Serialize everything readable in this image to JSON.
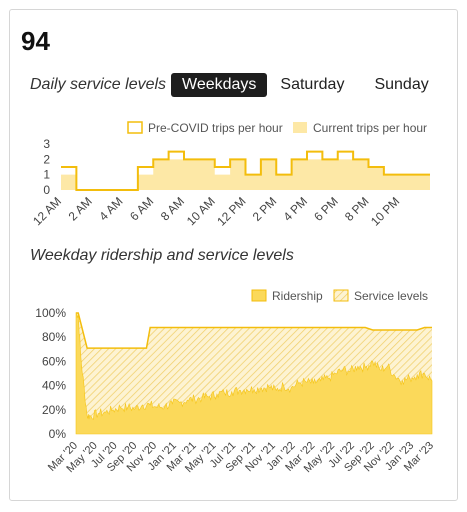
{
  "route": {
    "name": "94"
  },
  "service": {
    "title": "Daily service levels",
    "tabs": [
      {
        "label": "Weekdays",
        "active": true
      },
      {
        "label": "Saturday",
        "active": false
      },
      {
        "label": "Sunday",
        "active": false
      }
    ]
  },
  "ridership": {
    "title": "Weekday ridership and service levels"
  },
  "colors": {
    "fill": "#fbd95a",
    "fill_light": "#fde8a6",
    "line": "#f3bd0c",
    "hatch": "#f3d77a",
    "text": "#555555"
  },
  "chart_data": [
    {
      "type": "area",
      "title": "",
      "legend": [
        "Pre-COVID trips per hour",
        "Current trips per hour"
      ],
      "legend_position": "top-right",
      "x": [
        "12 AM",
        "1 AM",
        "2 AM",
        "3 AM",
        "4 AM",
        "5 AM",
        "6 AM",
        "7 AM",
        "8 AM",
        "9 AM",
        "10 AM",
        "11 AM",
        "12 PM",
        "1 PM",
        "2 PM",
        "3 PM",
        "4 PM",
        "5 PM",
        "6 PM",
        "7 PM",
        "8 PM",
        "9 PM",
        "10 PM",
        "11 PM"
      ],
      "xticks": [
        "12 AM",
        "2 AM",
        "4 AM",
        "6 AM",
        "8 AM",
        "10 AM",
        "12 PM",
        "2 PM",
        "4 PM",
        "6 PM",
        "8 PM",
        "10 PM"
      ],
      "yticks": [
        0,
        1,
        2,
        3
      ],
      "ylim": [
        0,
        3
      ],
      "series": [
        {
          "name": "Pre-COVID trips per hour",
          "values": [
            1.5,
            0,
            0,
            0,
            0,
            1.5,
            2,
            2.5,
            2,
            2,
            1.5,
            2,
            1,
            2,
            1,
            2,
            2.5,
            2,
            2.5,
            2,
            1.5,
            1,
            1,
            1
          ]
        },
        {
          "name": "Current trips per hour",
          "values": [
            1,
            0,
            0,
            0,
            0,
            1,
            2,
            2,
            2,
            2,
            1,
            2,
            1,
            2,
            1,
            2,
            2,
            2,
            2,
            2,
            1.5,
            1,
            1,
            1
          ]
        }
      ]
    },
    {
      "type": "area",
      "title": "",
      "legend": [
        "Ridership",
        "Service levels"
      ],
      "legend_position": "top-right",
      "xticks": [
        "Mar '20",
        "May '20",
        "Jul '20",
        "Sep '20",
        "Nov '20",
        "Jan '21",
        "Mar '21",
        "May '21",
        "Jul '21",
        "Sep '21",
        "Nov '21",
        "Jan '22",
        "Mar '22",
        "May '22",
        "Jul '22",
        "Sep '22",
        "Nov '22",
        "Jan '23",
        "Mar '23"
      ],
      "yticks": [
        "0%",
        "20%",
        "40%",
        "60%",
        "80%",
        "100%"
      ],
      "ylim": [
        0,
        100
      ],
      "series": [
        {
          "name": "Service levels",
          "months": [
            0,
            0.3,
            1.5,
            9.5,
            10,
            35,
            36,
            37,
            39,
            40,
            46,
            47,
            48
          ],
          "values": [
            100,
            100,
            71,
            71,
            88,
            88,
            88,
            88,
            88,
            86,
            86,
            88,
            88
          ]
        },
        {
          "name": "Ridership",
          "months": [
            0,
            0.3,
            0.7,
            1.5,
            2,
            3,
            4,
            5,
            6,
            7,
            8,
            9,
            10,
            11,
            12,
            13,
            14,
            15,
            16,
            17,
            18,
            19,
            20,
            21,
            22,
            23,
            24,
            25,
            26,
            27,
            28,
            29,
            30,
            31,
            32,
            33,
            34,
            35,
            36,
            37,
            38,
            39,
            40,
            41,
            42,
            43,
            44,
            45,
            46,
            47,
            48
          ],
          "values": [
            100,
            98,
            60,
            15,
            15,
            17,
            18,
            20,
            22,
            22,
            21,
            24,
            24,
            22,
            23,
            25,
            26,
            28,
            29,
            30,
            31,
            33,
            34,
            35,
            36,
            37,
            37,
            38,
            39,
            36,
            40,
            38,
            42,
            43,
            42,
            44,
            46,
            50,
            53,
            52,
            56,
            55,
            60,
            53,
            56,
            48,
            44,
            46,
            49,
            50,
            44
          ]
        }
      ]
    }
  ]
}
